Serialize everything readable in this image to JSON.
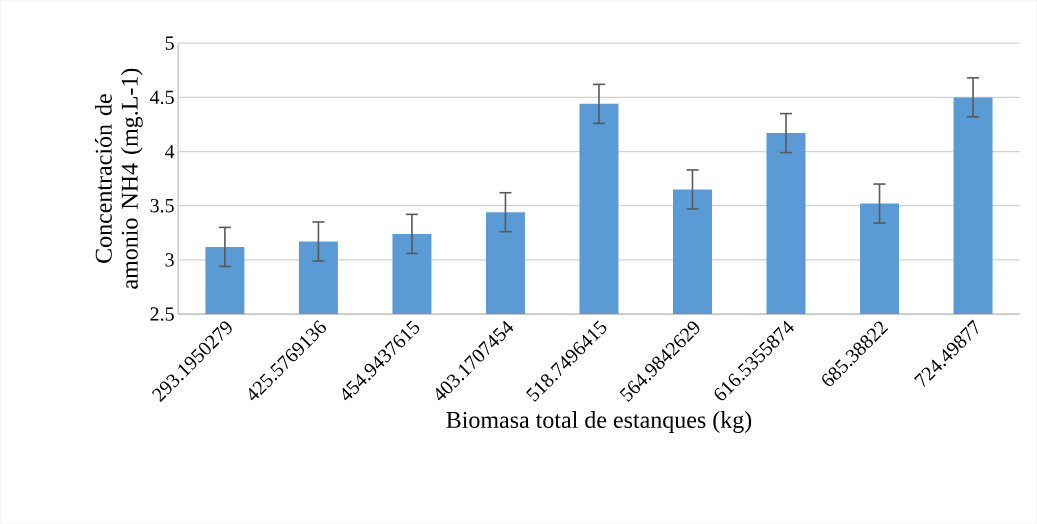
{
  "chart_data": {
    "type": "bar",
    "xlabel": "Biomasa total de estanques (kg)",
    "ylabel": "Concentración de amonio NH4 (mg.L-1)",
    "categories": [
      "293.1950279",
      "425.5769136",
      "454.9437615",
      "403.1707454",
      "518.7496415",
      "564.9842629",
      "616.5355874",
      "685.38822",
      "724.49877"
    ],
    "values": [
      3.12,
      3.17,
      3.24,
      3.44,
      4.44,
      3.65,
      4.17,
      3.52,
      4.5
    ],
    "errors": [
      0.18,
      0.18,
      0.18,
      0.18,
      0.18,
      0.18,
      0.18,
      0.18,
      0.18
    ],
    "color": "#5b9bd5",
    "ylim": [
      2.5,
      5
    ],
    "yticks": [
      2.5,
      3,
      3.5,
      4,
      4.5,
      5
    ],
    "grid": "y"
  }
}
